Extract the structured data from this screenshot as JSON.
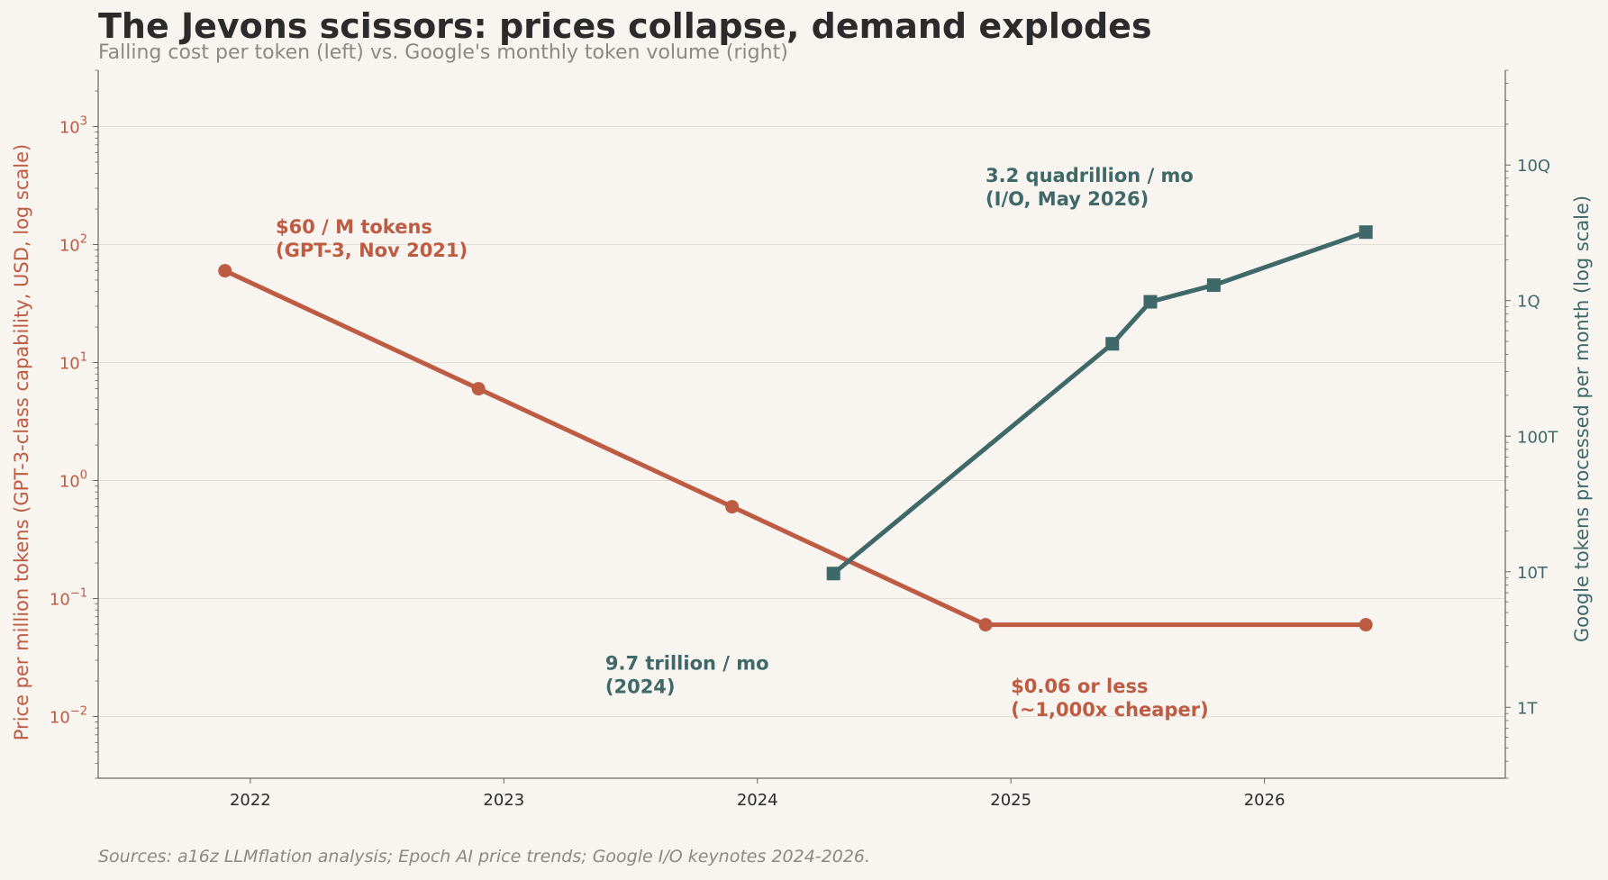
{
  "title": "The Jevons scissors: prices collapse, demand explodes",
  "subtitle": "Falling cost per token (left) vs. Google's monthly token volume (right)",
  "source": "Sources: a16z LLMflation analysis; Epoch AI price trends; Google I/O keynotes 2024-2026.",
  "colors": {
    "price": "#bd5b43",
    "volume": "#3f6868",
    "grid": "#e2ddd6",
    "axis": "#666666",
    "background": "#f8f4ef"
  },
  "chart_data": {
    "type": "line",
    "title": "The Jevons scissors: prices collapse, demand explodes",
    "subtitle": "Falling cost per token (left) vs. Google's monthly token volume (right)",
    "x": {
      "ticks": [
        2022,
        2023,
        2024,
        2025,
        2026
      ],
      "range": [
        2021.4,
        2026.95
      ]
    },
    "y_left": {
      "label": "Price per million tokens (GPT-3-class capability, USD, log scale)",
      "scale": "log",
      "range": [
        0.003,
        3000
      ],
      "ticks": [
        {
          "value": 0.01,
          "base": "10",
          "exp": "−2"
        },
        {
          "value": 0.1,
          "base": "10",
          "exp": "−1"
        },
        {
          "value": 1,
          "base": "10",
          "exp": "0"
        },
        {
          "value": 10,
          "base": "10",
          "exp": "1"
        },
        {
          "value": 100,
          "base": "10",
          "exp": "2"
        },
        {
          "value": 1000,
          "base": "10",
          "exp": "3"
        }
      ]
    },
    "y_right": {
      "label": "Google tokens processed per month (log scale)",
      "scale": "log",
      "range": [
        300000000000.0,
        5e+16
      ],
      "ticks": [
        {
          "value": 1000000000000.0,
          "label": "1T"
        },
        {
          "value": 10000000000000.0,
          "label": "10T"
        },
        {
          "value": 100000000000000.0,
          "label": "100T"
        },
        {
          "value": 1000000000000000.0,
          "label": "1Q"
        },
        {
          "value": 1e+16,
          "label": "10Q"
        }
      ]
    },
    "grid": true,
    "series": [
      {
        "key": "price",
        "axis": "left",
        "marker": "circle",
        "points": [
          {
            "x": 2021.9,
            "y": 60
          },
          {
            "x": 2022.9,
            "y": 6
          },
          {
            "x": 2023.9,
            "y": 0.6
          },
          {
            "x": 2024.9,
            "y": 0.06
          },
          {
            "x": 2026.4,
            "y": 0.06
          }
        ]
      },
      {
        "key": "volume",
        "axis": "right",
        "marker": "square",
        "points": [
          {
            "x": 2024.3,
            "y": 9700000000000.0
          },
          {
            "x": 2025.4,
            "y": 480000000000000.0
          },
          {
            "x": 2025.55,
            "y": 980000000000000.0
          },
          {
            "x": 2025.8,
            "y": 1300000000000000.0
          },
          {
            "x": 2026.4,
            "y": 3200000000000000.0
          }
        ]
      }
    ],
    "annotations": [
      {
        "key": "price_start",
        "series": "price",
        "axis": "left",
        "x": 2022.1,
        "y": 125,
        "lines": [
          "$60 / M tokens",
          "(GPT-3, Nov 2021)"
        ]
      },
      {
        "key": "price_end",
        "series": "price",
        "axis": "left",
        "x": 2025.0,
        "y": 0.016,
        "lines": [
          "$0.06 or less",
          "(~1,000x cheaper)"
        ]
      },
      {
        "key": "vol_start",
        "series": "volume",
        "axis": "left",
        "x": 2023.4,
        "y": 0.025,
        "lines": [
          "9.7 trillion / mo",
          "(2024)"
        ]
      },
      {
        "key": "vol_end",
        "series": "volume",
        "axis": "left",
        "x": 2024.9,
        "y": 340,
        "lines": [
          "3.2 quadrillion / mo",
          "(I/O, May 2026)"
        ]
      }
    ]
  }
}
